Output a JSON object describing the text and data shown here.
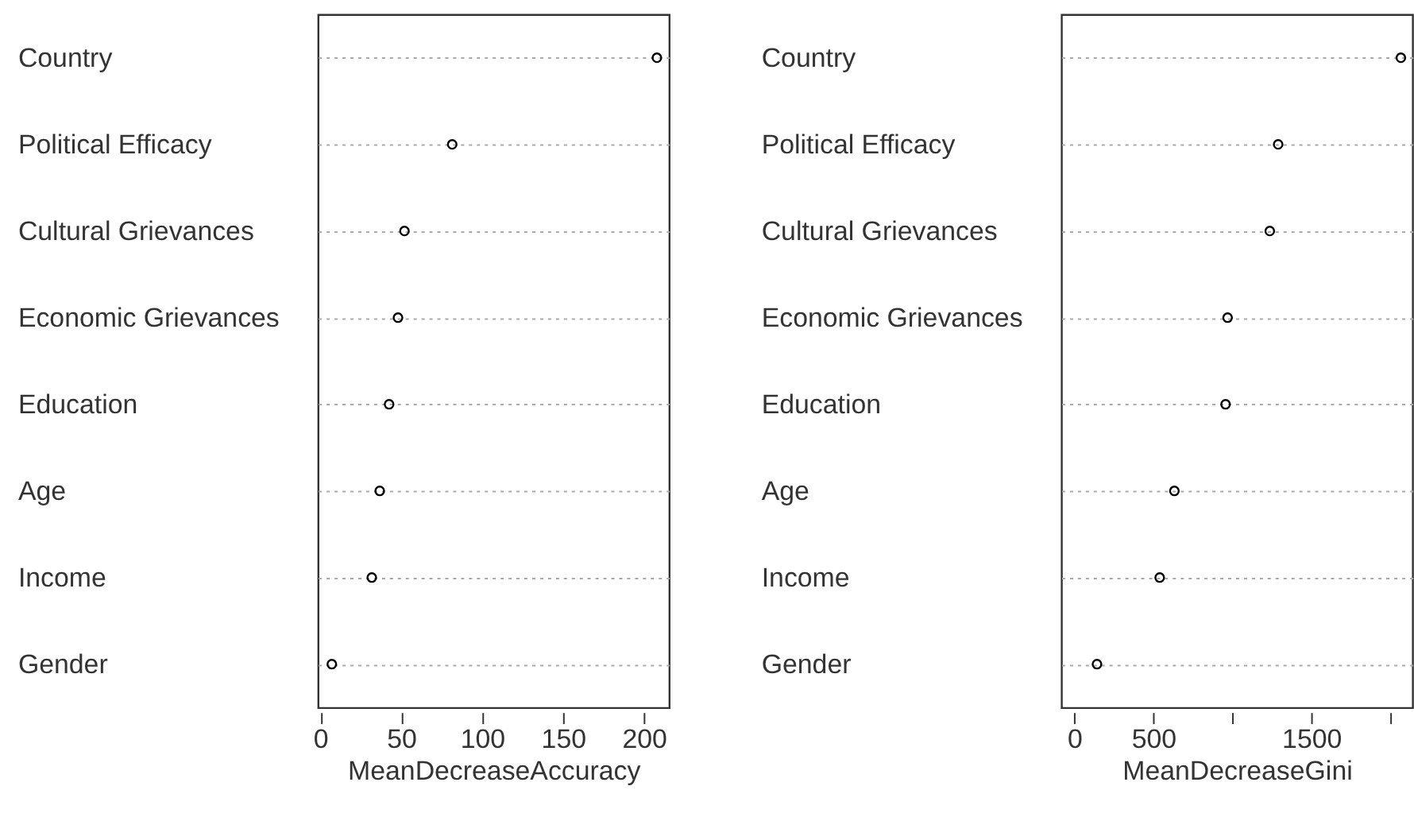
{
  "chart_data": [
    {
      "type": "scatter",
      "categories": [
        "Country",
        "Political Efficacy",
        "Cultural Grievances",
        "Economic Grievances",
        "Education",
        " Age",
        "Income",
        "Gender"
      ],
      "series": [
        {
          "color": "#000000",
          "values": [
            208,
            81.5,
            52,
            48,
            42.5,
            36.7,
            31.8,
            7.1
          ]
        }
      ],
      "xlabel": "MeanDecreaseAccuracy",
      "orientation": "horizontal",
      "xlim": [
        -1.5,
        215.5
      ],
      "xticks": [
        0,
        50,
        100,
        150,
        200
      ],
      "grid": "y",
      "marker": "circle"
    },
    {
      "type": "scatter",
      "categories": [
        "Country",
        "Political Efficacy",
        "Cultural Grievances",
        "Economic Grievances",
        "Education",
        " Age",
        "Income",
        "Gender"
      ],
      "series": [
        {
          "color": "#000000",
          "values": [
            2067,
            1290,
            1237,
            970,
            957,
            633,
            540,
            143
          ]
        }
      ],
      "xlabel": "MeanDecreaseGini",
      "orientation": "horizontal",
      "xlim": [
        -83,
        2140
      ],
      "xticks": [
        0,
        500,
        {
          "value": 1000,
          "label": null
        },
        1500,
        {
          "value": 2000,
          "label": null
        }
      ],
      "grid": "y",
      "marker": "circle"
    }
  ]
}
